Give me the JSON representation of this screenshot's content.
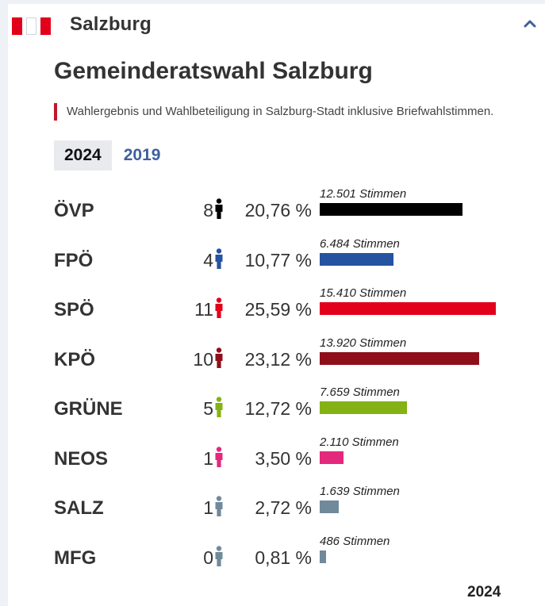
{
  "header": {
    "region": "Salzburg",
    "flag_colors": [
      "#e2001a",
      "#ffffff",
      "#e2001a"
    ],
    "collapse_icon": "chevron-up-icon"
  },
  "title": "Gemeinderatswahl Salzburg",
  "subtitle": "Wahlergebnis und Wahlbeteiligung in Salzburg-Stadt inklusive Briefwahlstimmen.",
  "tabs": [
    {
      "label": "2024",
      "active": true
    },
    {
      "label": "2019",
      "active": false
    }
  ],
  "parties": [
    {
      "name": "ÖVP",
      "seats": "8",
      "percent": "20,76 %",
      "percent_value": 20.76,
      "votes": "12.501 Stimmen",
      "color": "#000000"
    },
    {
      "name": "FPÖ",
      "seats": "4",
      "percent": "10,77 %",
      "percent_value": 10.77,
      "votes": "6.484 Stimmen",
      "color": "#2653a1"
    },
    {
      "name": "SPÖ",
      "seats": "11",
      "percent": "25,59 %",
      "percent_value": 25.59,
      "votes": "15.410 Stimmen",
      "color": "#e2001a"
    },
    {
      "name": "KPÖ",
      "seats": "10",
      "percent": "23,12 %",
      "percent_value": 23.12,
      "votes": "13.920 Stimmen",
      "color": "#8e0f1a"
    },
    {
      "name": "GRÜNE",
      "seats": "5",
      "percent": "12,72 %",
      "percent_value": 12.72,
      "votes": "7.659 Stimmen",
      "color": "#84b214"
    },
    {
      "name": "NEOS",
      "seats": "1",
      "percent": "3,50 %",
      "percent_value": 3.5,
      "votes": "2.110 Stimmen",
      "color": "#e4287c"
    },
    {
      "name": "SALZ",
      "seats": "1",
      "percent": "2,72 %",
      "percent_value": 2.72,
      "votes": "1.639 Stimmen",
      "color": "#718a9b"
    },
    {
      "name": "MFG",
      "seats": "0",
      "percent": "0,81 %",
      "percent_value": 0.81,
      "votes": "486 Stimmen",
      "color": "#718a9b"
    }
  ],
  "footer_year": "2024"
}
